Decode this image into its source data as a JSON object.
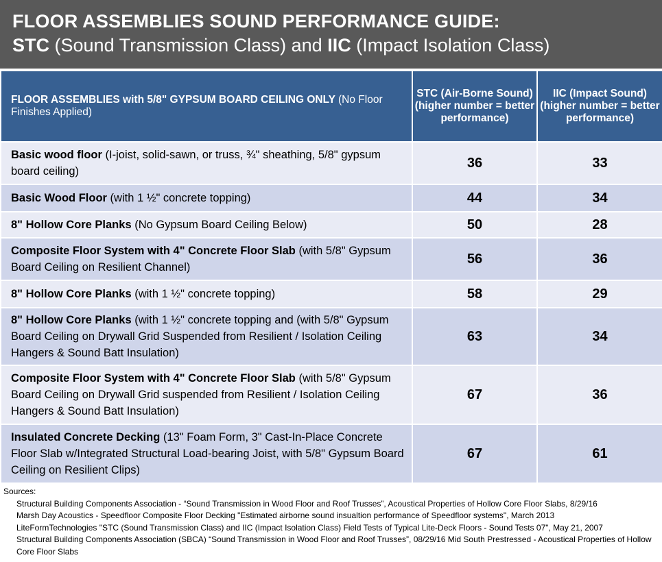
{
  "title": {
    "line1": "FLOOR ASSEMBLIES SOUND PERFORMANCE GUIDE:",
    "stc_abbr": "STC",
    "stc_full": "(Sound Transmission Class) and",
    "iic_abbr": "IIC",
    "iic_full": "(Impact Isolation Class)"
  },
  "header": {
    "col1_bold": "FLOOR ASSEMBLIES with 5/8\" GYPSUM BOARD CEILING ONLY",
    "col1_normal": "(No Floor Finishes Applied)",
    "col2": "STC (Air-Borne Sound) (higher number =  better performance)",
    "col3": "IIC (Impact Sound) (higher number = better performance)"
  },
  "rows": [
    {
      "bold": "Basic wood floor",
      "detail": "(I-joist, solid-sawn, or truss, ¾\" sheathing, 5/8\" gypsum board ceiling)",
      "stc": "36",
      "iic": "33"
    },
    {
      "bold": "Basic Wood Floor",
      "detail": "(with 1 ½\" concrete topping)",
      "stc": "44",
      "iic": "34"
    },
    {
      "bold": "8\" Hollow Core Planks",
      "detail": "(No Gypsum Board Ceiling Below)",
      "stc": "50",
      "iic": "28"
    },
    {
      "bold": "Composite Floor System with 4\" Concrete Floor Slab",
      "detail": "(with 5/8\" Gypsum Board Ceiling on Resilient Channel)",
      "stc": "56",
      "iic": "36"
    },
    {
      "bold": "8\" Hollow Core Planks",
      "detail": "(with 1 ½\" concrete topping)",
      "stc": "58",
      "iic": "29"
    },
    {
      "bold": "8\" Hollow Core Planks",
      "detail": "(with 1 ½\" concrete topping and (with 5/8\" Gypsum Board Ceiling on Drywall Grid Suspended from Resilient / Isolation Ceiling Hangers & Sound Batt Insulation)",
      "stc": "63",
      "iic": "34"
    },
    {
      "bold": "Composite Floor System with 4\" Concrete Floor Slab",
      "detail": "(with 5/8\" Gypsum Board Ceiling on Drywall Grid suspended from Resilient / Isolation Ceiling Hangers & Sound Batt Insulation)",
      "stc": "67",
      "iic": "36"
    },
    {
      "bold": "Insulated Concrete Decking",
      "detail": "(13\" Foam Form, 3\" Cast-In-Place Concrete Floor Slab w/Integrated Structural Load-bearing Joist, with 5/8\" Gypsum Board Ceiling on Resilient Clips)",
      "stc": "67",
      "iic": "61"
    }
  ],
  "sources": {
    "label": "Sources:",
    "items": [
      "Structural Building Components Association - “Sound Transmission in Wood Floor and Roof Trusses”, Acoustical Properties of Hollow Core Floor Slabs, 8/29/16",
      "Marsh Day Acoustics - Speedfloor Composite Floor Decking \"Estimated airborne sound insualtion performance of Speedfloor systems\", March 2013",
      "LiteFormTechnologies \"STC (Sound Transmission Class) and IIC (Impact Isolation Class) Field Tests of Typical Lite-Deck Floors - Sound Tests 07\", May 21, 2007",
      "Structural Building Components Association (SBCA) “Sound Transmission in Wood Floor and Roof Trusses”, 08/29/16 Mid South Prestressed - Acoustical Properties of Hollow Core Floor Slabs"
    ]
  }
}
